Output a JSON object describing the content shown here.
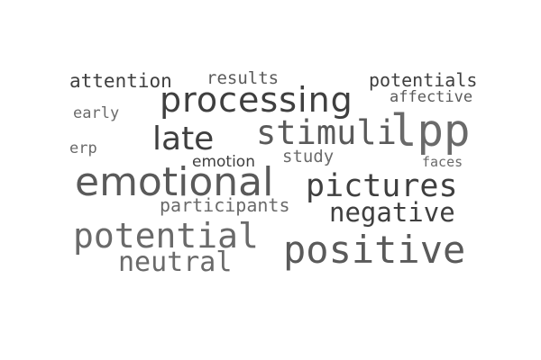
{
  "words": {
    "attention": "attention",
    "results": "results",
    "potentials": "potentials",
    "processing": "processing",
    "affective": "affective",
    "early": "early",
    "stimuli": "stimuli",
    "lpp": "lpp",
    "late": "late",
    "erp": "erp",
    "study": "study",
    "emotion": "emotion",
    "faces": "faces",
    "emotional": "emotional",
    "pictures": "pictures",
    "participants": "participants",
    "negative": "negative",
    "potential": "potential",
    "positive": "positive",
    "neutral": "neutral"
  },
  "colors": {
    "dark": "#3f3f3f",
    "mid": "#5a5a5a",
    "light": "#6a6a6a",
    "background": "#ffffff"
  }
}
